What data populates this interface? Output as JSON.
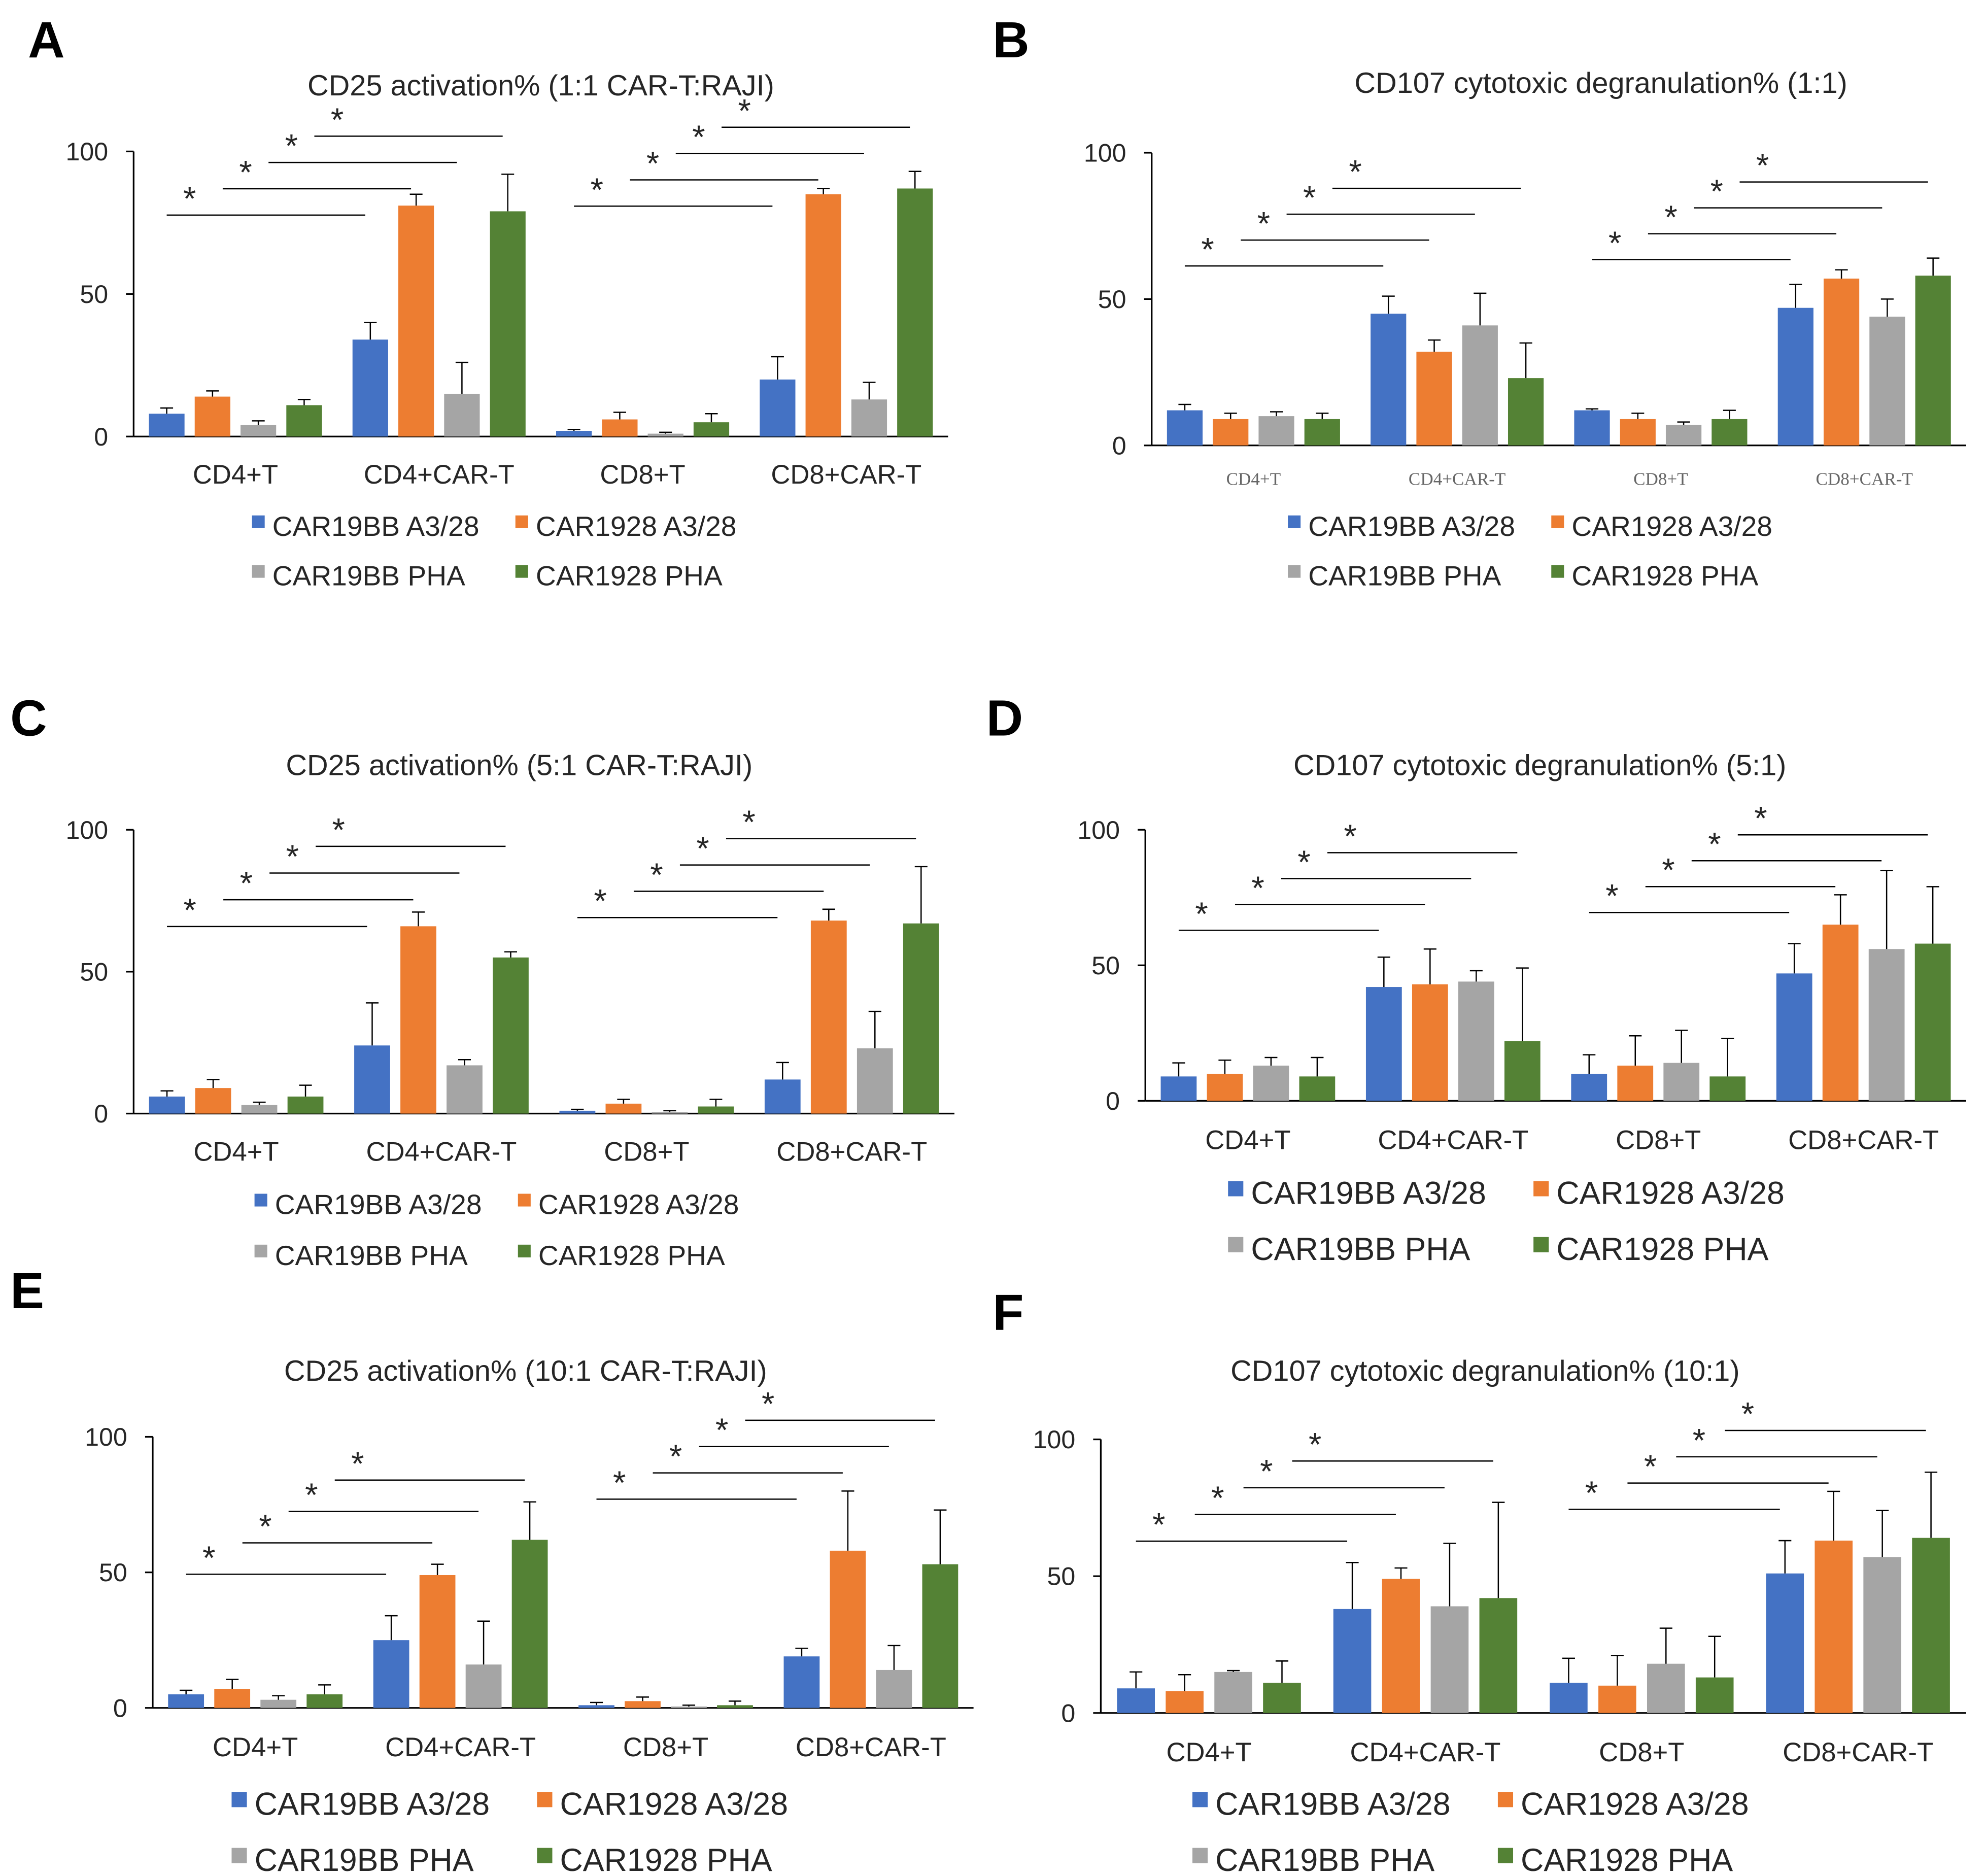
{
  "colors": {
    "CAR19BB A3/28": "#4472C4",
    "CAR1928 A3/28": "#ED7D31",
    "CAR19BB PHA": "#A5A5A5",
    "CAR1928 PHA": "#548235"
  },
  "chart_data": [
    {
      "panel": "A",
      "type": "bar",
      "title": "CD25 activation% (1:1 CAR-T:RAJI)",
      "categories": [
        "CD4+T",
        "CD4+CAR-T",
        "CD8+T",
        "CD8+CAR-T"
      ],
      "ylim": [
        0,
        100
      ],
      "yticks": [
        "0",
        "50",
        "100"
      ],
      "legend": "bottom",
      "series": [
        {
          "name": "CAR19BB A3/28",
          "values": [
            8,
            34,
            2,
            20
          ],
          "errors": [
            2,
            6,
            0.5,
            8
          ]
        },
        {
          "name": "CAR1928 A3/28",
          "values": [
            14,
            81,
            6,
            85
          ],
          "errors": [
            2,
            4,
            2.5,
            2
          ]
        },
        {
          "name": "CAR19BB PHA",
          "values": [
            4,
            15,
            1,
            13
          ],
          "errors": [
            1.5,
            11,
            0.5,
            6
          ]
        },
        {
          "name": "CAR1928 PHA",
          "values": [
            11,
            79,
            5,
            87
          ],
          "errors": [
            2,
            13,
            3,
            6
          ]
        }
      ],
      "significance_label": "*"
    },
    {
      "panel": "B",
      "type": "bar",
      "title": "CD107 cytotoxic degranulation% (1:1)",
      "categories": [
        "CD4+T",
        "CD4+CAR-T",
        "CD8+T",
        "CD8+CAR-T"
      ],
      "ylim": [
        0,
        100
      ],
      "yticks": [
        "0",
        "50",
        "100"
      ],
      "legend": "bottom",
      "series": [
        {
          "name": "CAR19BB A3/28",
          "values": [
            12,
            45,
            12,
            47
          ],
          "errors": [
            2,
            6,
            0.5,
            8
          ]
        },
        {
          "name": "CAR1928 A3/28",
          "values": [
            9,
            32,
            9,
            57
          ],
          "errors": [
            2,
            4,
            2,
            3
          ]
        },
        {
          "name": "CAR19BB PHA",
          "values": [
            10,
            41,
            7,
            44
          ],
          "errors": [
            1.5,
            11,
            1,
            6
          ]
        },
        {
          "name": "CAR1928 PHA",
          "values": [
            9,
            23,
            9,
            58
          ],
          "errors": [
            2,
            12,
            3,
            6
          ]
        }
      ],
      "significance_label": "*"
    },
    {
      "panel": "C",
      "type": "bar",
      "title": "CD25 activation% (5:1 CAR-T:RAJI)",
      "categories": [
        "CD4+T",
        "CD4+CAR-T",
        "CD8+T",
        "CD8+CAR-T"
      ],
      "ylim": [
        0,
        100
      ],
      "yticks": [
        "0",
        "50",
        "100"
      ],
      "legend": "bottom",
      "series": [
        {
          "name": "CAR19BB A3/28",
          "values": [
            6,
            24,
            1,
            12
          ],
          "errors": [
            2,
            15,
            0.5,
            6
          ]
        },
        {
          "name": "CAR1928 A3/28",
          "values": [
            9,
            66,
            3.5,
            68
          ],
          "errors": [
            3,
            5,
            1.5,
            4
          ]
        },
        {
          "name": "CAR19BB PHA",
          "values": [
            3,
            17,
            0.5,
            23
          ],
          "errors": [
            1,
            2,
            0.5,
            13
          ]
        },
        {
          "name": "CAR1928 PHA",
          "values": [
            6,
            55,
            2.5,
            67
          ],
          "errors": [
            4,
            2,
            2.5,
            20
          ]
        }
      ],
      "significance_label": "*"
    },
    {
      "panel": "D",
      "type": "bar",
      "title": "CD107 cytotoxic degranulation% (5:1)",
      "categories": [
        "CD4+T",
        "CD4+CAR-T",
        "CD8+T",
        "CD8+CAR-T"
      ],
      "ylim": [
        0,
        100
      ],
      "yticks": [
        "0",
        "50",
        "100"
      ],
      "legend": "bottom",
      "series": [
        {
          "name": "CAR19BB A3/28",
          "values": [
            9,
            42,
            10,
            47
          ],
          "errors": [
            5,
            11,
            7,
            11
          ]
        },
        {
          "name": "CAR1928 A3/28",
          "values": [
            10,
            43,
            13,
            65
          ],
          "errors": [
            5,
            13,
            11,
            11
          ]
        },
        {
          "name": "CAR19BB PHA",
          "values": [
            13,
            44,
            14,
            56
          ],
          "errors": [
            3,
            4,
            12,
            29
          ]
        },
        {
          "name": "CAR1928 PHA",
          "values": [
            9,
            22,
            9,
            58
          ],
          "errors": [
            7,
            27,
            14,
            21
          ]
        }
      ],
      "significance_label": "*"
    },
    {
      "panel": "E",
      "type": "bar",
      "title": "CD25 activation% (10:1 CAR-T:RAJI)",
      "categories": [
        "CD4+T",
        "CD4+CAR-T",
        "CD8+T",
        "CD8+CAR-T"
      ],
      "ylim": [
        0,
        100
      ],
      "yticks": [
        "0",
        "50",
        "100"
      ],
      "legend": "bottom",
      "series": [
        {
          "name": "CAR19BB A3/28",
          "values": [
            5,
            25,
            1,
            19
          ],
          "errors": [
            1.5,
            9,
            1,
            3
          ]
        },
        {
          "name": "CAR1928 A3/28",
          "values": [
            7,
            49,
            2.5,
            58
          ],
          "errors": [
            3.5,
            4,
            1.5,
            22
          ]
        },
        {
          "name": "CAR19BB PHA",
          "values": [
            3,
            16,
            0.5,
            14
          ],
          "errors": [
            1.5,
            16,
            0.5,
            9
          ]
        },
        {
          "name": "CAR1928 PHA",
          "values": [
            5,
            62,
            1,
            53
          ],
          "errors": [
            3.5,
            14,
            1.5,
            20
          ]
        }
      ],
      "significance_label": "*"
    },
    {
      "panel": "F",
      "type": "bar",
      "title": "CD107 cytotoxic degranulation% (10:1)",
      "categories": [
        "CD4+T",
        "CD4+CAR-T",
        "CD8+T",
        "CD8+CAR-T"
      ],
      "ylim": [
        0,
        100
      ],
      "yticks": [
        "0",
        "50",
        "100"
      ],
      "legend": "bottom",
      "series": [
        {
          "name": "CAR19BB A3/28",
          "values": [
            9,
            38,
            11,
            51
          ],
          "errors": [
            6,
            17,
            9,
            12
          ]
        },
        {
          "name": "CAR1928 A3/28",
          "values": [
            8,
            49,
            10,
            63
          ],
          "errors": [
            6,
            4,
            11,
            18
          ]
        },
        {
          "name": "CAR19BB PHA",
          "values": [
            15,
            39,
            18,
            57
          ],
          "errors": [
            0.5,
            23,
            13,
            17
          ]
        },
        {
          "name": "CAR1928 PHA",
          "values": [
            11,
            42,
            13,
            64
          ],
          "errors": [
            8,
            35,
            15,
            24
          ]
        }
      ],
      "significance_label": "*"
    }
  ]
}
